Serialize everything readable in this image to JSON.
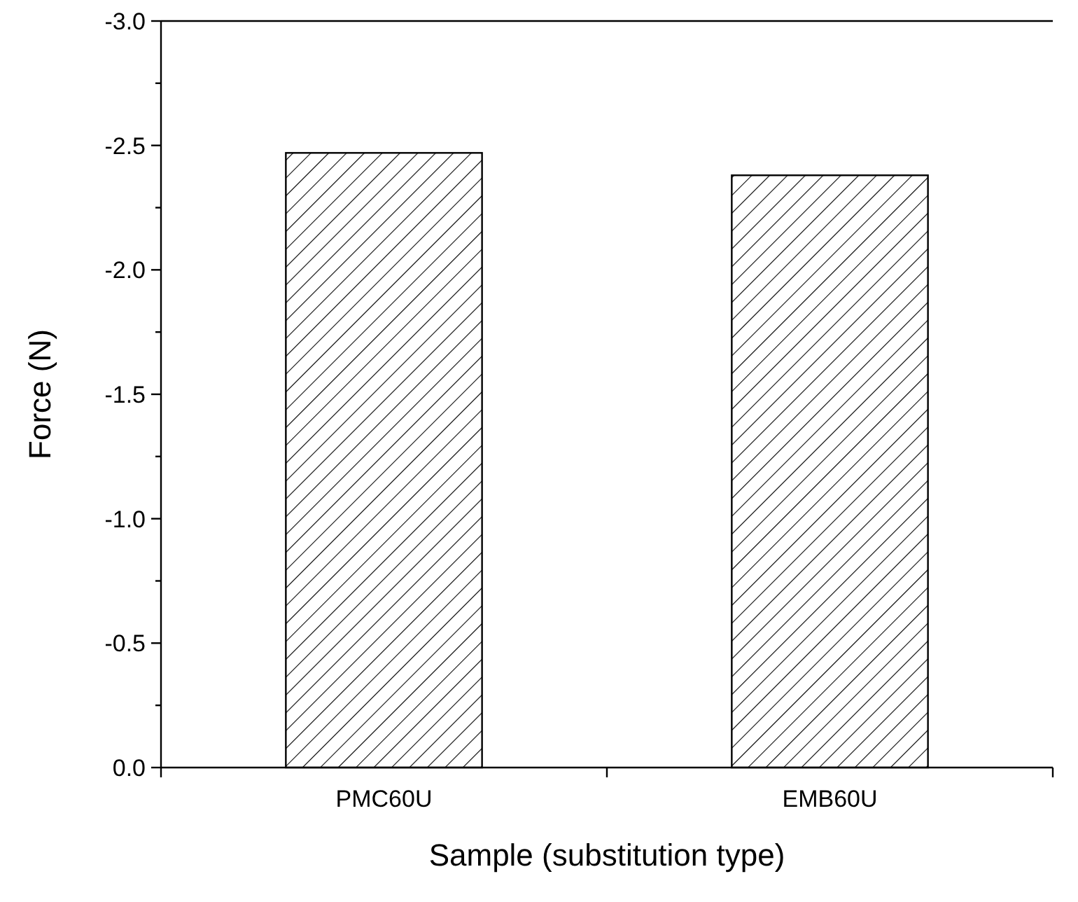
{
  "chart_data": {
    "type": "bar",
    "xlabel": "Sample (substitution type)",
    "ylabel": "Force (N)",
    "categories": [
      "PMC60U",
      "EMB60U"
    ],
    "values": [
      -2.47,
      -2.38
    ],
    "color": "#000000",
    "ylim": [
      0,
      -3
    ],
    "yticks": [
      {
        "value": 0,
        "label": "0.0"
      },
      {
        "value": -0.25,
        "label": null
      },
      {
        "value": -0.5,
        "label": "-0.5"
      },
      {
        "value": -0.75,
        "label": null
      },
      {
        "value": -1,
        "label": "-1.0"
      },
      {
        "value": -1.25,
        "label": null
      },
      {
        "value": -1.5,
        "label": "-1.5"
      },
      {
        "value": -1.75,
        "label": null
      },
      {
        "value": -2,
        "label": "-2.0"
      },
      {
        "value": -2.25,
        "label": null
      },
      {
        "value": -2.5,
        "label": "-2.5"
      },
      {
        "value": -2.75,
        "label": null
      },
      {
        "value": -3,
        "label": "-3.0"
      }
    ],
    "grid": false
  }
}
